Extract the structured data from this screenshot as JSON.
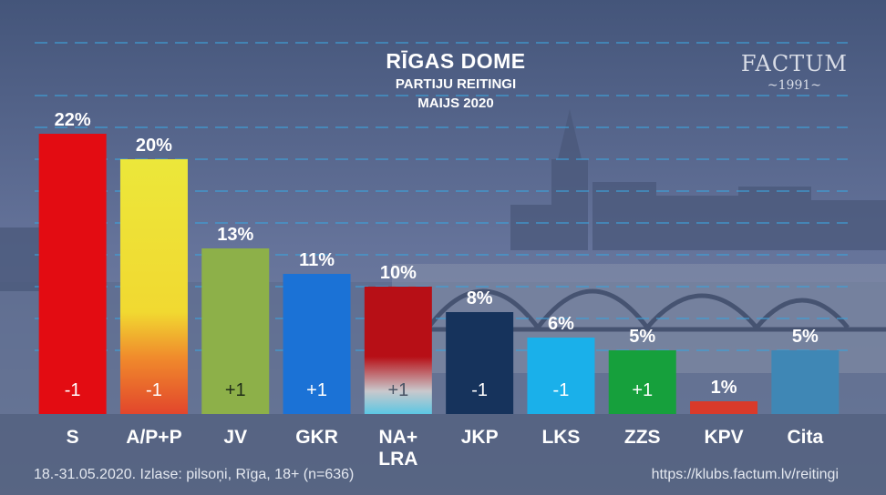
{
  "title": {
    "line1": "RĪGAS DOME",
    "line2": "PARTIJU REITINGI",
    "line3": "MAIJS 2020"
  },
  "brand": {
    "name": "FACTUM",
    "year": "~1991~"
  },
  "footer": {
    "left": "18.-31.05.2020. Izlase: pilsoņi, Rīga, 18+ (n=636)",
    "right": "https://klubs.factum.lv/reitingi"
  },
  "chart_data": {
    "type": "bar",
    "categories": [
      "S",
      "A/P+P",
      "JV",
      "GKR",
      "NA+\nLRA",
      "JKP",
      "LKS",
      "ZZS",
      "KPV",
      "Cita"
    ],
    "values": [
      22,
      20,
      13,
      11,
      10,
      8,
      6,
      5,
      1,
      5
    ],
    "value_labels": [
      "22%",
      "20%",
      "13%",
      "11%",
      "10%",
      "8%",
      "6%",
      "5%",
      "1%",
      "5%"
    ],
    "change_labels": [
      "-1",
      "-1",
      "+1",
      "+1",
      "+1",
      "-1",
      "-1",
      "+1",
      "",
      ""
    ],
    "colors": [
      "#e30c12",
      "#ece73a",
      "#8db049",
      "#1b72d6",
      "#b70f16",
      "#16335c",
      "#1ab0ea",
      "#16a03c",
      "#d93a2a",
      "#3f87b5"
    ],
    "ylim": [
      0,
      25
    ],
    "grid": true
  }
}
